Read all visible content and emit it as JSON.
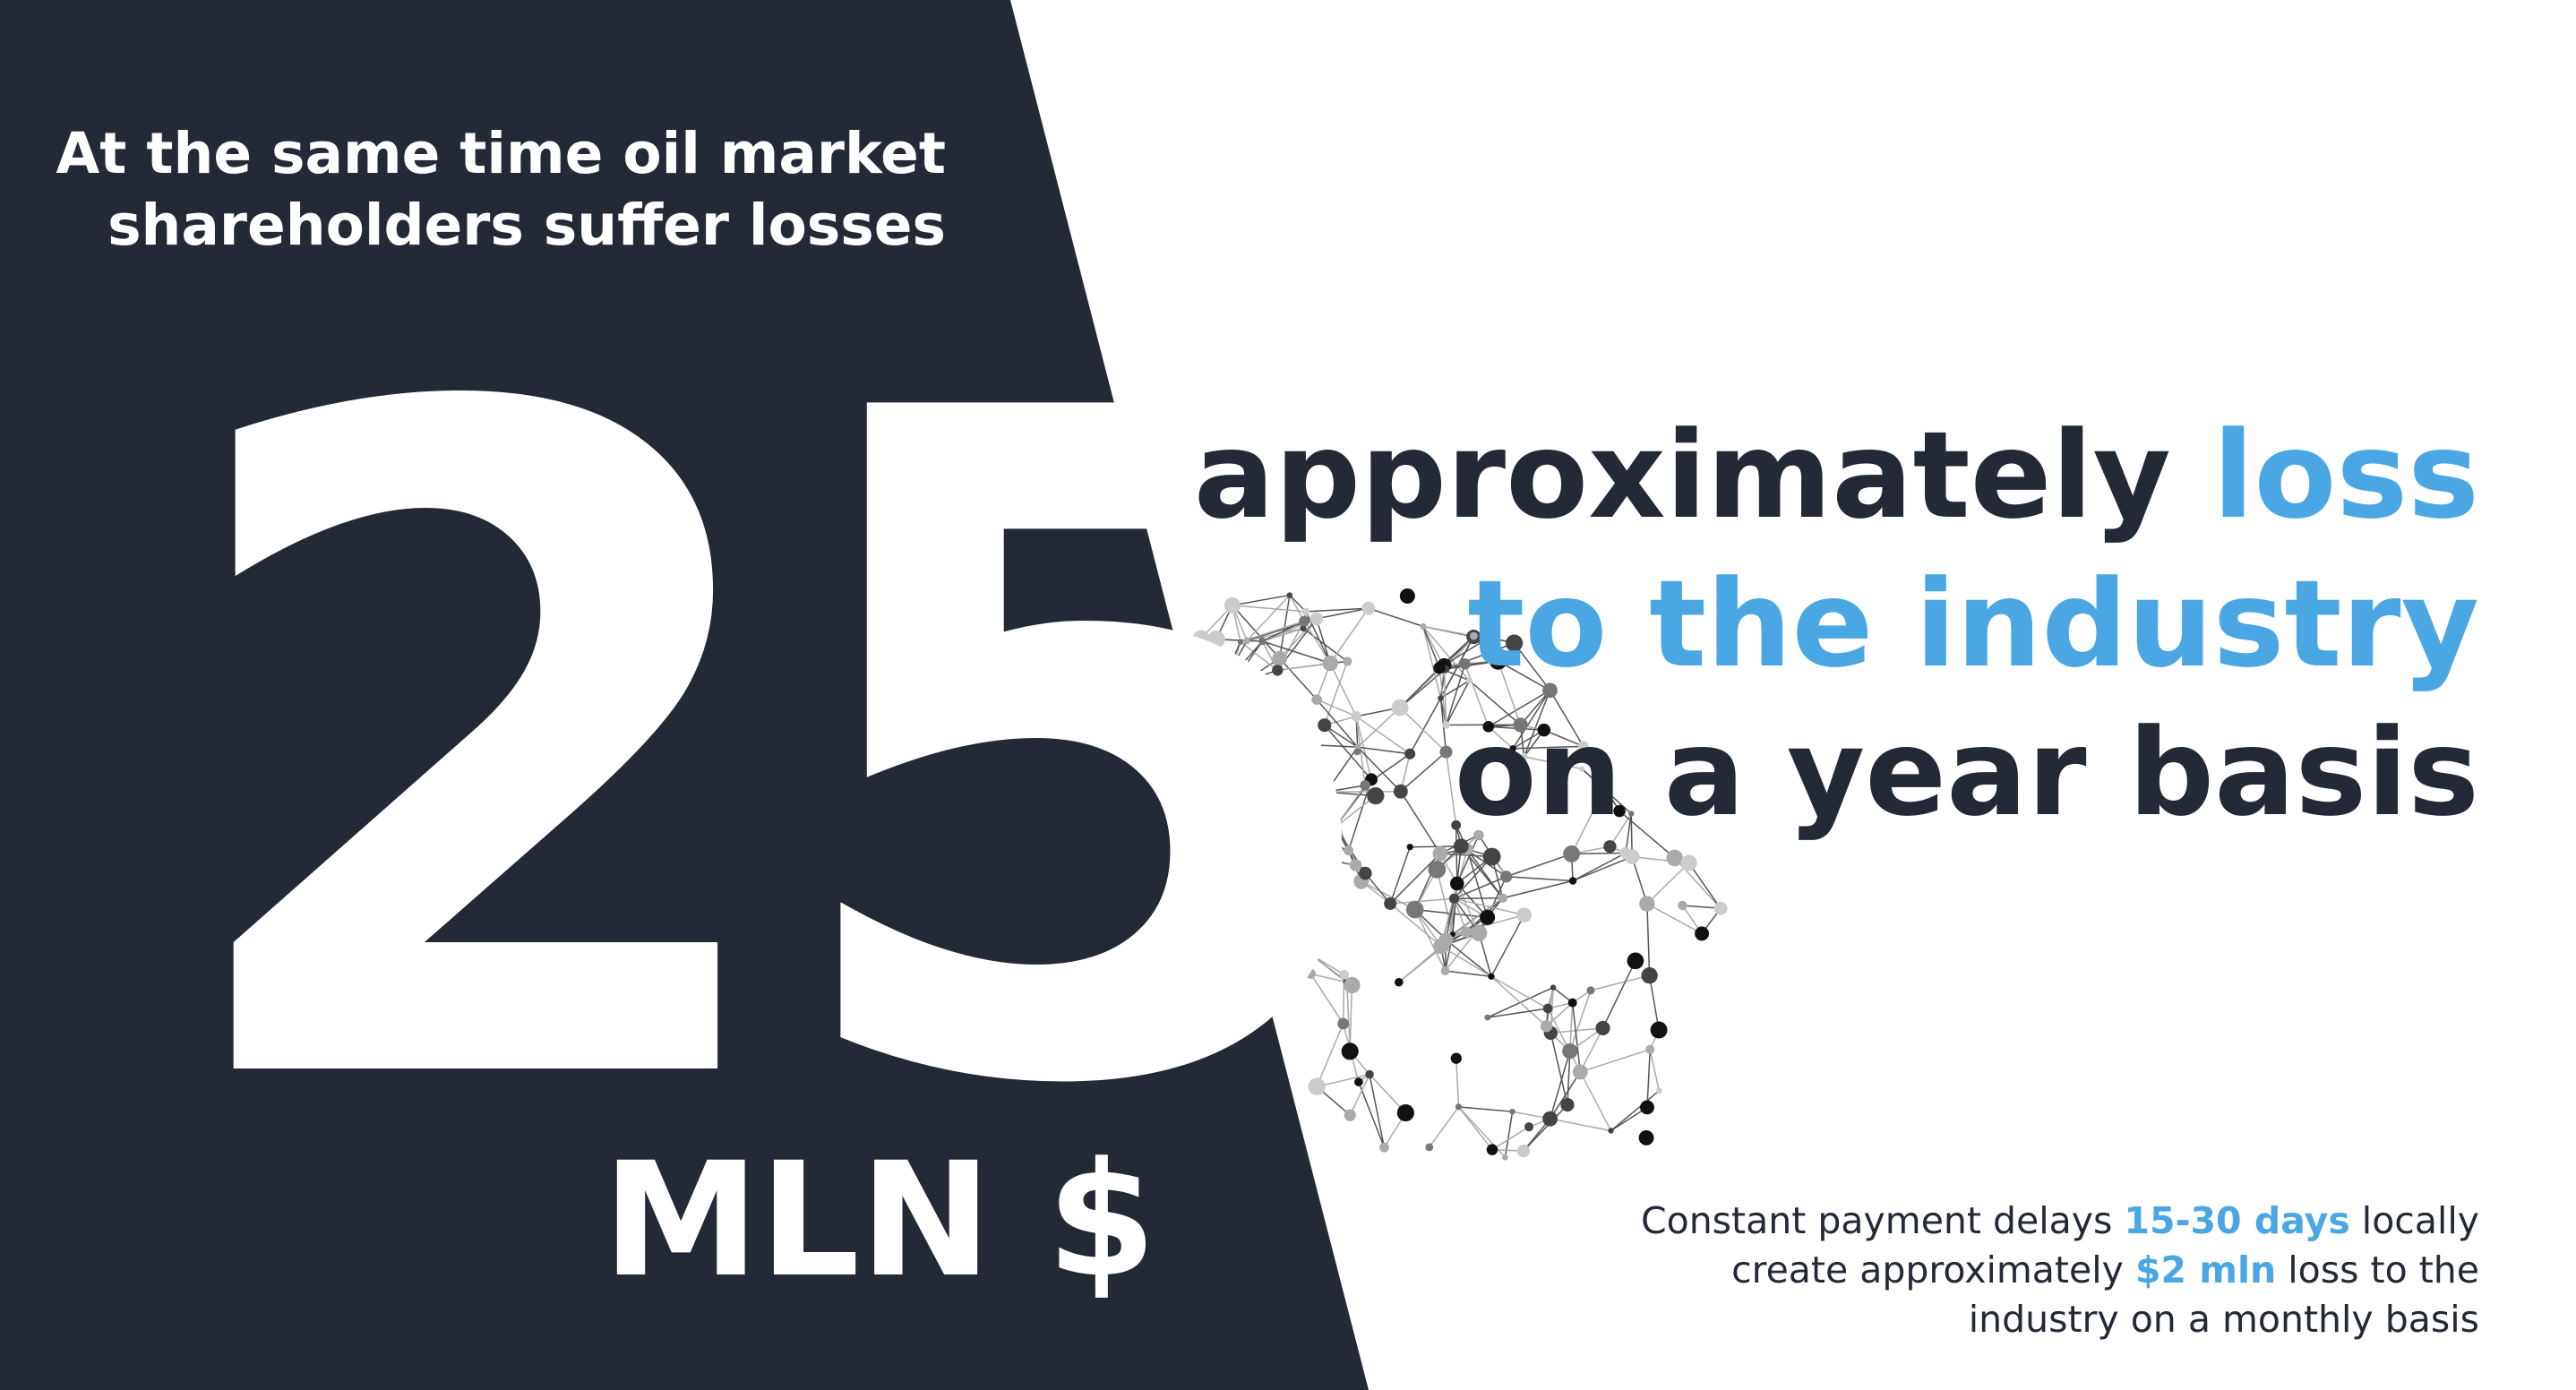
{
  "headline": {
    "line1": "At the same time oil market",
    "line2": "shareholders suffer losses"
  },
  "figure": {
    "number": "25",
    "unit": "MLN $"
  },
  "tagline": {
    "line1_part1": "approximately",
    "line1_part2": "loss",
    "line2": "to the industry",
    "line3": "on a year basis"
  },
  "note": {
    "part1": "Constant payment delays",
    "highlight1": "15-30 days",
    "part2": "locally",
    "part3": "create approximately",
    "highlight2": "$2 mln",
    "part4": "loss to the",
    "part5": "industry on a monthly basis"
  },
  "colors": {
    "dark": "#232935",
    "accent": "#4ba7e3",
    "white": "#ffffff"
  }
}
